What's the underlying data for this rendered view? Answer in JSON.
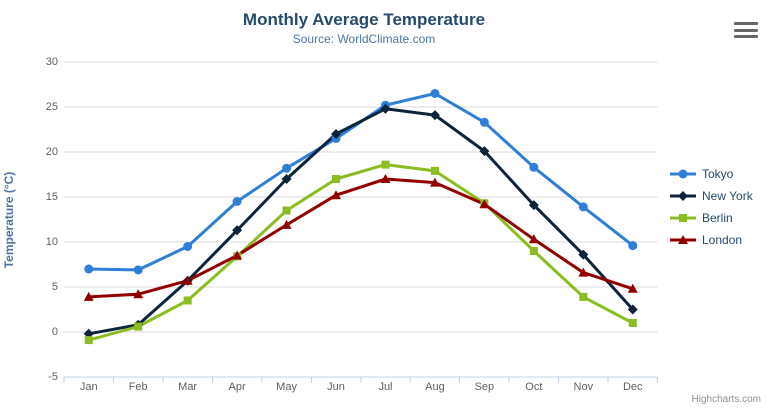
{
  "header": {
    "title": "Monthly Average Temperature",
    "subtitle": "Source: WorldClimate.com"
  },
  "credits": {
    "label": "Highcharts.com"
  },
  "icons": {
    "context_menu": "hamburger-icon"
  },
  "chart_data": {
    "type": "line",
    "title": "Monthly Average Temperature",
    "subtitle": "Source: WorldClimate.com",
    "categories": [
      "Jan",
      "Feb",
      "Mar",
      "Apr",
      "May",
      "Jun",
      "Jul",
      "Aug",
      "Sep",
      "Oct",
      "Nov",
      "Dec"
    ],
    "xlabel": "",
    "ylabel": "Temperature (°C)",
    "ylim": [
      -5,
      30
    ],
    "yticks": [
      -5,
      0,
      5,
      10,
      15,
      20,
      25,
      30
    ],
    "grid": true,
    "legend_position": "right",
    "colors": {
      "grid_line": "#d8d8d8",
      "axis_line": "#c0d0e0",
      "tick_label": "#606060",
      "title": "#274b6d",
      "subtitle": "#4d759e",
      "axis_title": "#4d759e"
    },
    "series": [
      {
        "name": "Tokyo",
        "color": "#2f7ed8",
        "marker": "circle",
        "values": [
          7.0,
          6.9,
          9.5,
          14.5,
          18.2,
          21.5,
          25.2,
          26.5,
          23.3,
          18.3,
          13.9,
          9.6
        ]
      },
      {
        "name": "New York",
        "color": "#0d233a",
        "marker": "diamond",
        "values": [
          -0.2,
          0.8,
          5.7,
          11.3,
          17.0,
          22.0,
          24.8,
          24.1,
          20.1,
          14.1,
          8.6,
          2.5
        ]
      },
      {
        "name": "Berlin",
        "color": "#8bbc21",
        "marker": "square",
        "values": [
          -0.9,
          0.6,
          3.5,
          8.4,
          13.5,
          17.0,
          18.6,
          17.9,
          14.3,
          9.0,
          3.9,
          1.0
        ]
      },
      {
        "name": "London",
        "color": "#910000",
        "marker": "triangle",
        "values": [
          3.9,
          4.2,
          5.7,
          8.5,
          11.9,
          15.2,
          17.0,
          16.6,
          14.2,
          10.3,
          6.6,
          4.8
        ]
      }
    ]
  }
}
